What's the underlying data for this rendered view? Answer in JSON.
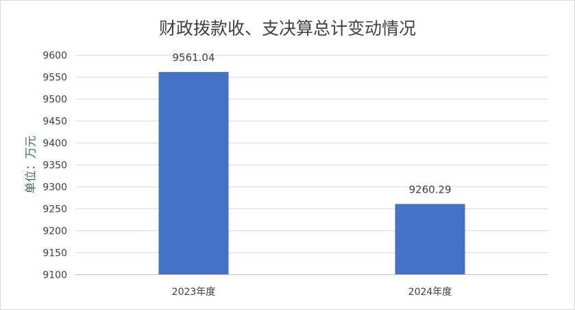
{
  "chart_data": {
    "type": "bar",
    "title": "财政拨款收、支决算总计变动情况",
    "ylabel": "单位：万元",
    "xlabel": "",
    "categories": [
      "2023年度",
      "2024年度"
    ],
    "values": [
      9561.04,
      9260.29
    ],
    "data_labels": [
      "9561.04",
      "9260.29"
    ],
    "ylim": [
      9100,
      9600
    ],
    "yticks": [
      9100,
      9150,
      9200,
      9250,
      9300,
      9350,
      9400,
      9450,
      9500,
      9550,
      9600
    ],
    "grid": true,
    "legend": "none",
    "bar_color": "#4472c4"
  }
}
